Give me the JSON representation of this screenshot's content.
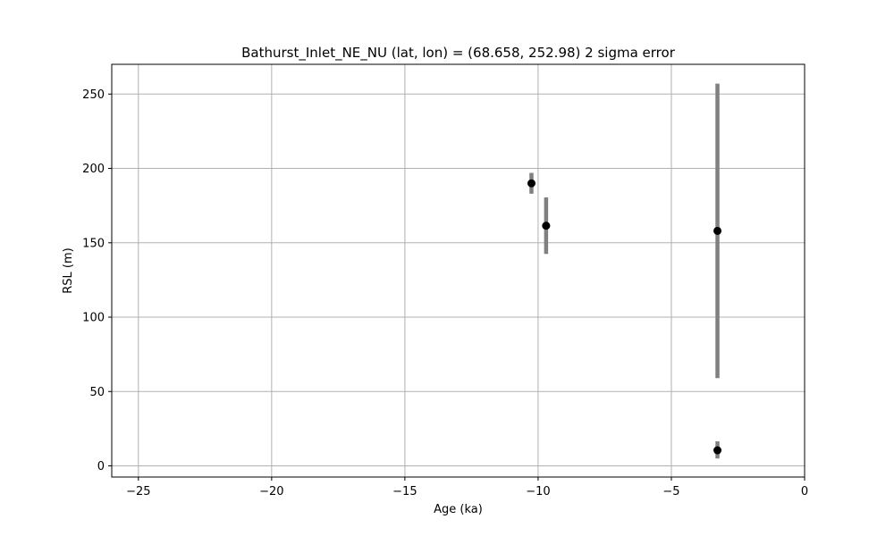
{
  "chart_data": {
    "type": "scatter",
    "title": "Bathurst_Inlet_NE_NU (lat, lon) = (68.658, 252.98)  2 sigma error",
    "xlabel": "Age (ka)",
    "ylabel": "RSL (m)",
    "xlim": [
      -26,
      0
    ],
    "ylim": [
      -7.5,
      270
    ],
    "xticks": [
      -25,
      -20,
      -15,
      -10,
      -5,
      0
    ],
    "xtick_labels": [
      "−25",
      "−20",
      "−15",
      "−10",
      "−5",
      "0"
    ],
    "yticks": [
      0,
      50,
      100,
      150,
      200,
      250
    ],
    "ytick_labels": [
      "0",
      "50",
      "100",
      "150",
      "200",
      "250"
    ],
    "grid": true,
    "point_color": "#000000",
    "errorbar_color": "#808080",
    "points": [
      {
        "x": -10.25,
        "y": 190,
        "y_low": 183,
        "y_high": 197
      },
      {
        "x": -9.7,
        "y": 161.5,
        "y_low": 142.5,
        "y_high": 180.5
      },
      {
        "x": -3.27,
        "y": 158,
        "y_low": 59,
        "y_high": 257
      },
      {
        "x": -3.27,
        "y": 10.5,
        "y_low": 5,
        "y_high": 16.5
      }
    ]
  }
}
